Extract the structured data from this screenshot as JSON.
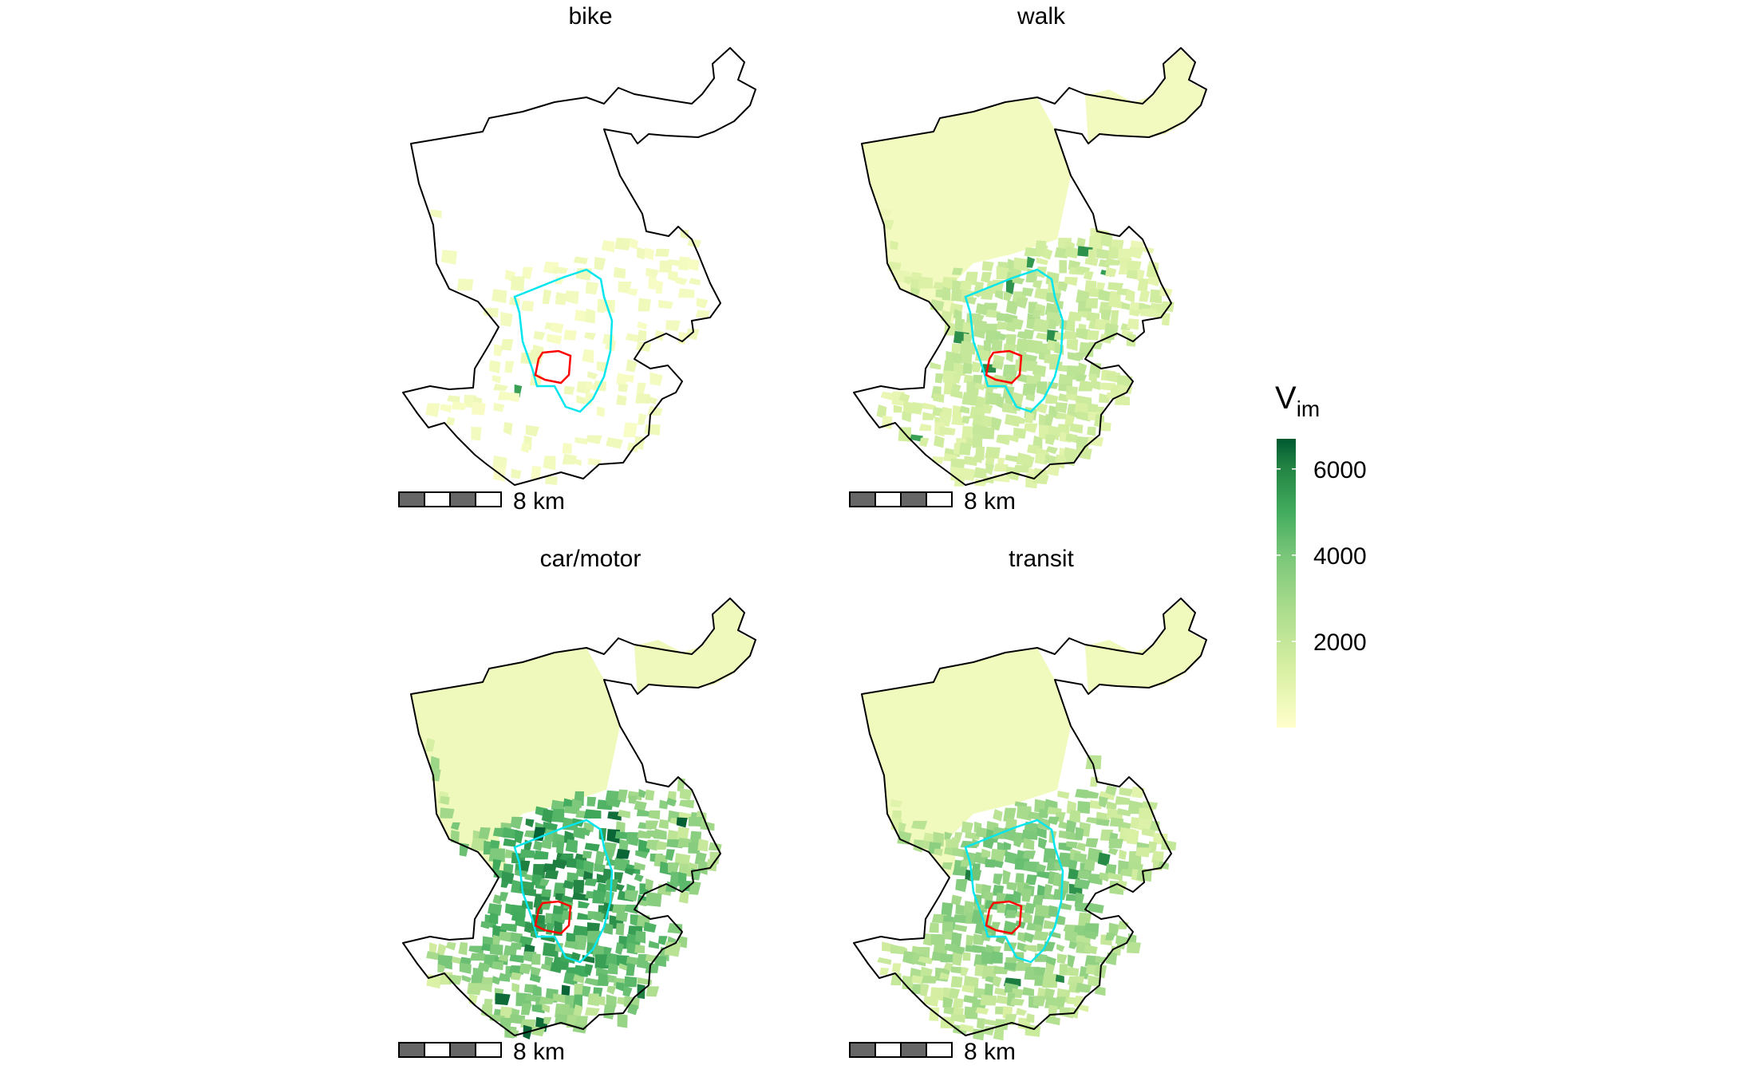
{
  "figure": {
    "panels": [
      {
        "title": "bike",
        "scale_label": "8 km",
        "level": 0.1
      },
      {
        "title": "walk",
        "scale_label": "8 km",
        "level": 0.35
      },
      {
        "title": "car/motor",
        "scale_label": "8 km",
        "level": 1.0
      },
      {
        "title": "transit",
        "scale_label": "8 km",
        "level": 0.65
      }
    ],
    "legend": {
      "title_main": "V",
      "title_sub": "im",
      "ticks": [
        "2000",
        "4000",
        "6000"
      ],
      "tick_values": [
        2000,
        4000,
        6000
      ],
      "range": [
        0,
        6700
      ],
      "colors": [
        "#ffffcc",
        "#d9f0a3",
        "#addd8e",
        "#78c679",
        "#41ab5d",
        "#238443",
        "#005a32"
      ]
    },
    "outline_colors": {
      "boundary": "#000000",
      "ring": "#00e5ee",
      "center": "#ff0000"
    }
  }
}
